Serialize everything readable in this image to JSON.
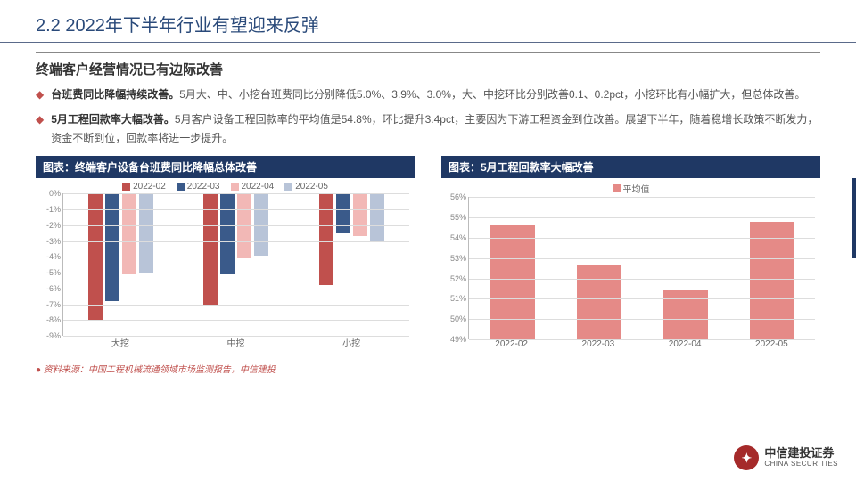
{
  "header": {
    "title": "2.2 2022年下半年行业有望迎来反弹"
  },
  "subtitle": "终端客户经营情况已有边际改善",
  "bullets": [
    {
      "bold": "台班费同比降幅持续改善。",
      "text": "5月大、中、小挖台班费同比分别降低5.0%、3.9%、3.0%，大、中挖环比分别改善0.1、0.2pct，小挖环比有小幅扩大，但总体改善。"
    },
    {
      "bold": "5月工程回款率大幅改善。",
      "text": "5月客户设备工程回款率的平均值是54.8%，环比提升3.4pct，主要因为下游工程资金到位改善。展望下半年，随着稳增长政策不断发力，资金不断到位，回款率将进一步提升。"
    }
  ],
  "chart1": {
    "title": "图表：终端客户设备台班费同比降幅总体改善",
    "type": "bar",
    "legend": [
      "2022-02",
      "2022-03",
      "2022-04",
      "2022-05"
    ],
    "legend_colors": [
      "#c0504d",
      "#3a5a8a",
      "#f2b8b6",
      "#b8c4d8"
    ],
    "categories": [
      "大挖",
      "中挖",
      "小挖"
    ],
    "ylim": [
      -9,
      0
    ],
    "ytick_step": 1,
    "series": {
      "大挖": [
        -8.0,
        -6.8,
        -5.1,
        -5.0
      ],
      "中挖": [
        -7.0,
        -5.1,
        -4.1,
        -3.9
      ],
      "小挖": [
        -5.8,
        -2.5,
        -2.7,
        -3.0
      ]
    },
    "grid_color": "#dddddd",
    "background_color": "#ffffff"
  },
  "chart2": {
    "title": "图表：5月工程回款率大幅改善",
    "type": "bar",
    "legend": [
      "平均值"
    ],
    "legend_colors": [
      "#e58a87"
    ],
    "categories": [
      "2022-02",
      "2022-03",
      "2022-04",
      "2022-05"
    ],
    "ylim": [
      49,
      56
    ],
    "ytick_step": 1,
    "values": [
      54.6,
      52.7,
      51.4,
      54.8
    ],
    "grid_color": "#dddddd",
    "background_color": "#ffffff"
  },
  "source": "资料来源：中国工程机械流通领域市场监测报告，中信建投",
  "logo": {
    "cn": "中信建投证券",
    "en": "CHINA SECURITIES"
  }
}
